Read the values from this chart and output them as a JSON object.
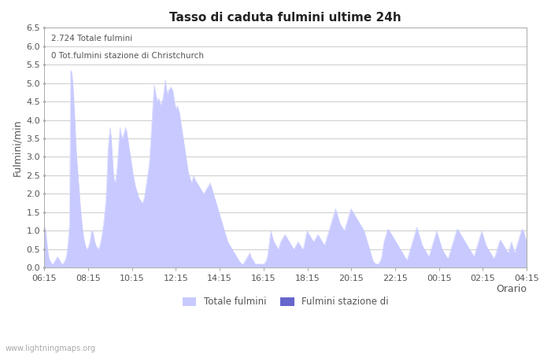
{
  "title": "Tasso di caduta fulmini ultime 24h",
  "xlabel": "Orario",
  "ylabel": "Fulmini/min",
  "ylim": [
    0,
    6.5
  ],
  "yticks": [
    0.0,
    0.5,
    1.0,
    1.5,
    2.0,
    2.5,
    3.0,
    3.5,
    4.0,
    4.5,
    5.0,
    5.5,
    6.0,
    6.5
  ],
  "xtick_labels": [
    "06:15",
    "08:15",
    "10:15",
    "12:15",
    "14:15",
    "16:15",
    "18:15",
    "20:15",
    "22:15",
    "00:15",
    "02:15",
    "04:15"
  ],
  "annotation_line1": "2.724 Totale fulmini",
  "annotation_line2": "0 Tot.fulmini stazione di Christchurch",
  "legend_label1": "Totale fulmini",
  "legend_label2": "Fulmini stazione di",
  "fill_color": "#c8caff",
  "fill_color2": "#6666cc",
  "watermark": "www.lightningmaps.org",
  "background_color": "#ffffff",
  "grid_color": "#cccccc",
  "y_values": [
    0.9,
    1.1,
    0.8,
    0.5,
    0.3,
    0.2,
    0.15,
    0.1,
    0.1,
    0.15,
    0.2,
    0.25,
    0.3,
    0.25,
    0.2,
    0.15,
    0.1,
    0.1,
    0.15,
    0.2,
    0.3,
    0.5,
    0.8,
    1.2,
    5.35,
    5.3,
    5.0,
    4.5,
    3.9,
    3.2,
    2.8,
    2.4,
    2.0,
    1.6,
    1.3,
    1.0,
    0.8,
    0.65,
    0.55,
    0.5,
    0.55,
    0.65,
    0.8,
    1.0,
    1.0,
    0.85,
    0.7,
    0.6,
    0.55,
    0.5,
    0.55,
    0.65,
    0.8,
    1.0,
    1.2,
    1.5,
    1.8,
    2.4,
    3.2,
    3.55,
    3.8,
    3.5,
    3.0,
    2.5,
    2.3,
    2.4,
    2.6,
    3.0,
    3.5,
    3.8,
    3.6,
    3.5,
    3.6,
    3.7,
    3.8,
    3.7,
    3.5,
    3.3,
    3.1,
    2.9,
    2.7,
    2.5,
    2.35,
    2.2,
    2.1,
    2.0,
    1.9,
    1.85,
    1.8,
    1.75,
    1.8,
    1.9,
    2.1,
    2.3,
    2.5,
    2.7,
    3.0,
    3.5,
    4.0,
    4.5,
    4.95,
    4.8,
    4.6,
    4.5,
    4.6,
    4.5,
    4.4,
    4.5,
    4.6,
    4.8,
    5.1,
    4.9,
    4.7,
    4.8,
    4.85,
    4.9,
    4.85,
    4.8,
    4.6,
    4.4,
    4.3,
    4.4,
    4.3,
    4.2,
    4.0,
    3.8,
    3.6,
    3.4,
    3.2,
    3.0,
    2.8,
    2.6,
    2.5,
    2.4,
    2.3,
    2.4,
    2.5,
    2.4,
    2.35,
    2.3,
    2.25,
    2.2,
    2.15,
    2.1,
    2.05,
    2.0,
    2.05,
    2.1,
    2.15,
    2.2,
    2.25,
    2.3,
    2.2,
    2.1,
    2.0,
    1.9,
    1.8,
    1.7,
    1.6,
    1.5,
    1.4,
    1.3,
    1.2,
    1.1,
    1.0,
    0.9,
    0.8,
    0.7,
    0.65,
    0.6,
    0.55,
    0.5,
    0.45,
    0.4,
    0.35,
    0.3,
    0.25,
    0.2,
    0.15,
    0.12,
    0.1,
    0.1,
    0.15,
    0.2,
    0.25,
    0.3,
    0.35,
    0.4,
    0.3,
    0.25,
    0.2,
    0.15,
    0.1,
    0.1,
    0.1,
    0.1,
    0.1,
    0.1,
    0.1,
    0.1,
    0.1,
    0.15,
    0.2,
    0.3,
    0.5,
    0.75,
    1.0,
    0.9,
    0.8,
    0.7,
    0.65,
    0.6,
    0.55,
    0.5,
    0.6,
    0.7,
    0.75,
    0.8,
    0.85,
    0.9,
    0.85,
    0.8,
    0.75,
    0.7,
    0.65,
    0.6,
    0.55,
    0.5,
    0.55,
    0.6,
    0.65,
    0.7,
    0.65,
    0.6,
    0.55,
    0.5,
    0.55,
    0.7,
    0.85,
    1.0,
    0.95,
    0.9,
    0.85,
    0.8,
    0.75,
    0.7,
    0.75,
    0.8,
    0.85,
    0.9,
    0.85,
    0.8,
    0.75,
    0.7,
    0.65,
    0.6,
    0.7,
    0.8,
    0.9,
    1.0,
    1.1,
    1.2,
    1.3,
    1.4,
    1.5,
    1.6,
    1.5,
    1.4,
    1.3,
    1.2,
    1.15,
    1.1,
    1.05,
    1.0,
    1.1,
    1.2,
    1.3,
    1.4,
    1.5,
    1.6,
    1.55,
    1.5,
    1.45,
    1.4,
    1.35,
    1.3,
    1.25,
    1.2,
    1.15,
    1.1,
    1.05,
    1.0,
    0.9,
    0.8,
    0.7,
    0.6,
    0.5,
    0.4,
    0.3,
    0.2,
    0.15,
    0.12,
    0.1,
    0.1,
    0.1,
    0.15,
    0.2,
    0.3,
    0.5,
    0.7,
    0.8,
    0.9,
    1.0,
    1.05,
    1.0,
    0.95,
    0.9,
    0.85,
    0.8,
    0.75,
    0.7,
    0.65,
    0.6,
    0.55,
    0.5,
    0.45,
    0.4,
    0.35,
    0.3,
    0.25,
    0.2,
    0.3,
    0.4,
    0.5,
    0.6,
    0.7,
    0.8,
    0.9,
    1.0,
    1.1,
    1.0,
    0.9,
    0.8,
    0.7,
    0.6,
    0.55,
    0.5,
    0.45,
    0.4,
    0.35,
    0.3,
    0.4,
    0.5,
    0.6,
    0.7,
    0.8,
    0.9,
    1.0,
    0.9,
    0.8,
    0.7,
    0.6,
    0.5,
    0.45,
    0.4,
    0.35,
    0.3,
    0.25,
    0.3,
    0.4,
    0.5,
    0.6,
    0.7,
    0.8,
    0.9,
    1.0,
    1.05,
    1.0,
    0.95,
    0.9,
    0.85,
    0.8,
    0.75,
    0.7,
    0.65,
    0.6,
    0.55,
    0.5,
    0.45,
    0.4,
    0.35,
    0.3,
    0.4,
    0.5,
    0.6,
    0.7,
    0.8,
    0.9,
    1.0,
    0.9,
    0.8,
    0.7,
    0.6,
    0.55,
    0.5,
    0.45,
    0.4,
    0.35,
    0.3,
    0.25,
    0.3,
    0.4,
    0.5,
    0.6,
    0.7,
    0.75,
    0.7,
    0.65,
    0.6,
    0.55,
    0.5,
    0.45,
    0.4,
    0.5,
    0.6,
    0.7,
    0.6,
    0.5,
    0.4,
    0.5,
    0.6,
    0.7,
    0.8,
    0.9,
    1.0,
    1.05,
    1.0,
    0.9,
    0.8,
    0.7
  ]
}
